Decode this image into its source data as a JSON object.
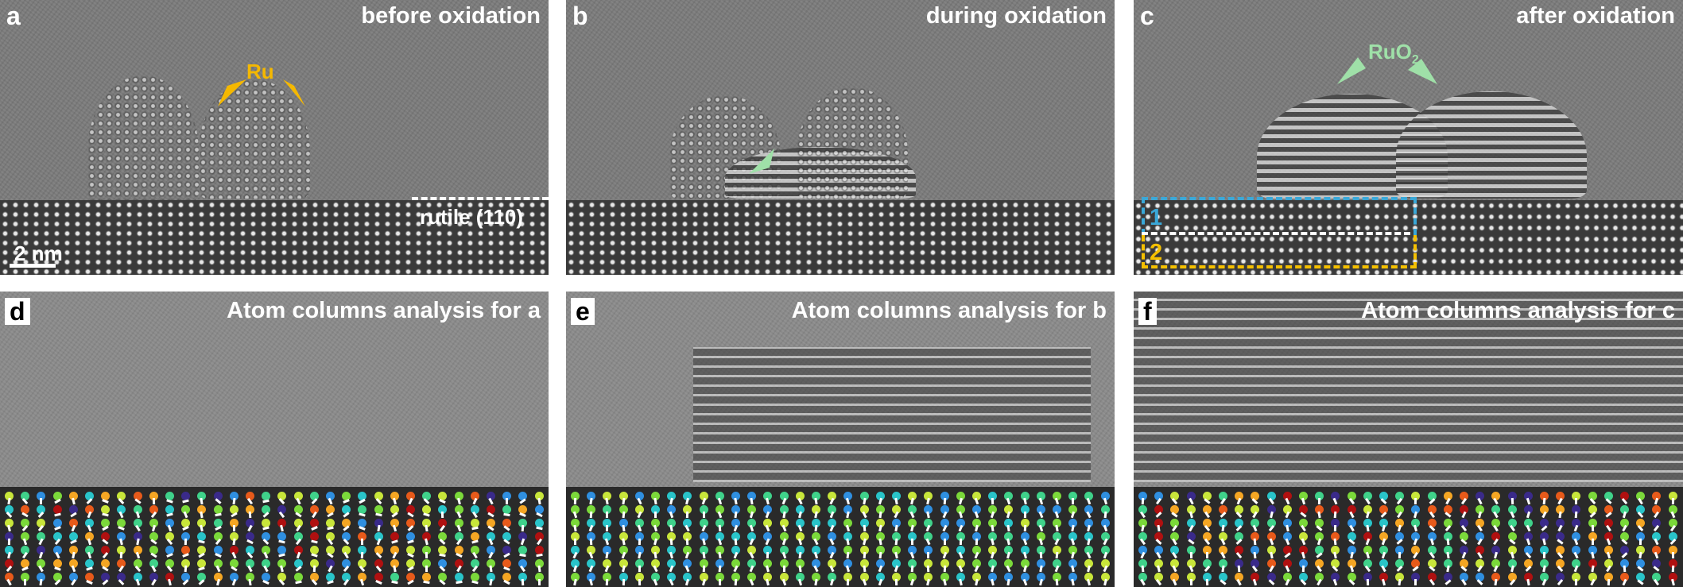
{
  "panels_top": [
    {
      "letter": "a",
      "title": "before oxidation",
      "particle_label": "Ru",
      "substrate_label": "rutile (110)",
      "scale_bar": "2 nm"
    },
    {
      "letter": "b",
      "title": "during oxidation"
    },
    {
      "letter": "c",
      "title": "after oxidation",
      "particle_label": "RuO",
      "particle_label_sub": "2",
      "region_1": "1",
      "region_2": "2"
    }
  ],
  "panels_bottom": [
    {
      "letter": "d",
      "title": "Atom columns analysis for a"
    },
    {
      "letter": "e",
      "title": "Atom columns analysis for b"
    },
    {
      "letter": "f",
      "title": "Atom columns analysis for c"
    }
  ],
  "colors": {
    "ru_arrow": "#f5b800",
    "ruo2_arrow": "#9fe0a8",
    "region_1": "#3aa8d8",
    "region_2": "#f5c000"
  }
}
